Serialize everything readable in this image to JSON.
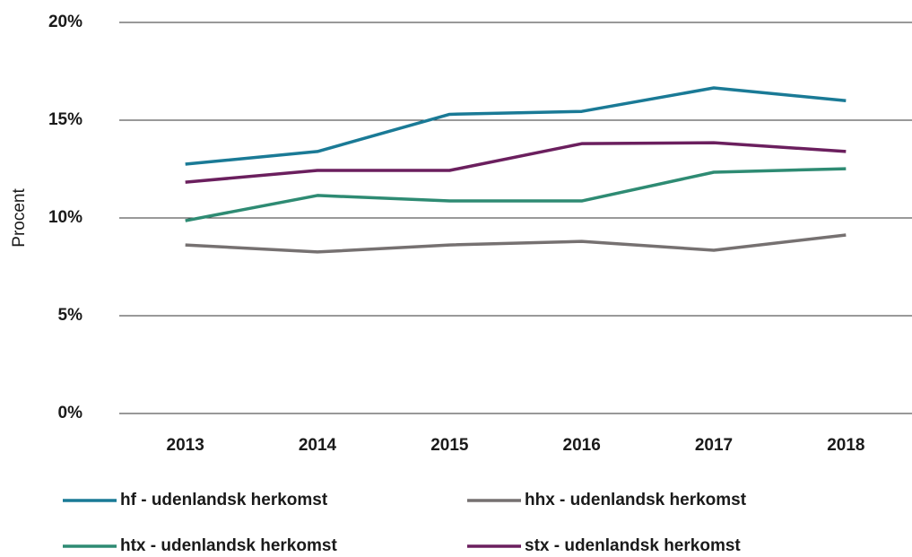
{
  "chart_data": {
    "type": "line",
    "y_label": "Procent",
    "categories": [
      "2013",
      "2014",
      "2015",
      "2016",
      "2017",
      "2018"
    ],
    "series": [
      {
        "name": "hf - udenlandsk herkomst",
        "color": "#1a7a96",
        "values": [
          12.75,
          13.4,
          15.3,
          15.45,
          16.65,
          16.0
        ]
      },
      {
        "name": "hhx - udenlandsk herkomst",
        "color": "#767171",
        "values": [
          8.62,
          8.26,
          8.62,
          8.8,
          8.35,
          9.13
        ]
      },
      {
        "name": "htx - udenlandsk herkomst",
        "color": "#2e8b73",
        "values": [
          9.86,
          11.15,
          10.87,
          10.87,
          12.34,
          12.52
        ]
      },
      {
        "name": "stx - udenlandsk herkomst",
        "color": "#6b1f5e",
        "values": [
          11.83,
          12.43,
          12.43,
          13.8,
          13.85,
          13.4
        ]
      }
    ],
    "ylim": [
      0,
      20
    ],
    "yticks": [
      {
        "value": 0,
        "label": "0%"
      },
      {
        "value": 5,
        "label": "5%"
      },
      {
        "value": 10,
        "label": "10%"
      },
      {
        "value": 15,
        "label": "15%"
      },
      {
        "value": 20,
        "label": "20%"
      }
    ],
    "grid": true,
    "legend": "bottom"
  }
}
